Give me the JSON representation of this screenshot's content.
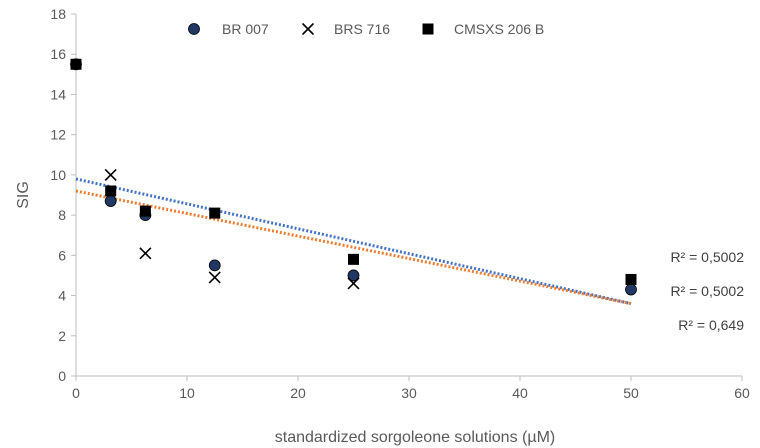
{
  "chart_data": {
    "type": "scatter",
    "xlabel": "standardized sorgoleone solutions (µM)",
    "ylabel": "SIG",
    "xlim": [
      0,
      60
    ],
    "ylim": [
      0,
      18
    ],
    "x_ticks": [
      0,
      10,
      20,
      30,
      40,
      50,
      60
    ],
    "y_ticks": [
      0,
      2,
      4,
      6,
      8,
      10,
      12,
      14,
      16,
      18
    ],
    "grid": false,
    "legend_position": "top",
    "series": [
      {
        "name": "BR 007",
        "marker": "circle",
        "color": "#1f3864",
        "x": [
          0,
          3.125,
          6.25,
          12.5,
          25,
          50
        ],
        "y": [
          15.5,
          8.7,
          8.0,
          5.5,
          5.0,
          4.3
        ]
      },
      {
        "name": "BRS 716",
        "marker": "x",
        "color": "#000000",
        "x": [
          3.125,
          6.25,
          12.5,
          25
        ],
        "y": [
          10.0,
          6.1,
          4.9,
          4.6
        ]
      },
      {
        "name": "CMSXS 206 B",
        "marker": "square",
        "color": "#000000",
        "x": [
          0,
          3.125,
          6.25,
          12.5,
          25,
          50
        ],
        "y": [
          15.5,
          9.2,
          8.2,
          8.1,
          5.8,
          4.8
        ]
      }
    ],
    "trendlines": [
      {
        "color": "#4472c4",
        "style": "dotted",
        "x": [
          0,
          50
        ],
        "y": [
          9.8,
          3.6
        ]
      },
      {
        "color": "#ed7d31",
        "style": "dotted",
        "x": [
          0,
          50
        ],
        "y": [
          9.2,
          3.6
        ]
      }
    ],
    "annotations": [
      "R² = 0,5002",
      "R² = 0,5002",
      "R² = 0,649"
    ]
  }
}
